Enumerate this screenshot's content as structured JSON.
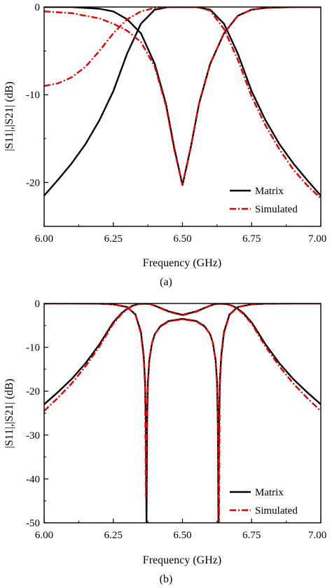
{
  "chart_data": [
    {
      "type": "line",
      "panel_label": "(a)",
      "xlabel": "Frequency (GHz)",
      "ylabel": "|S11|,|S21| (dB)",
      "xlim": [
        6.0,
        7.0
      ],
      "ylim": [
        -25,
        0
      ],
      "xticks": [
        "6.00",
        "6.25",
        "6.50",
        "6.75",
        "7.00"
      ],
      "yticks": [
        "0",
        "-10",
        "-20"
      ],
      "ytick_values": [
        0,
        -10,
        -20
      ],
      "legend": {
        "placement": "bottom-right",
        "entries": [
          "Matrix",
          "Simulated"
        ]
      },
      "series": [
        {
          "name": "Matrix",
          "color": "#000000",
          "style": "solid",
          "curves": [
            {
              "x": [
                6.0,
                6.05,
                6.1,
                6.15,
                6.2,
                6.25,
                6.3,
                6.35,
                6.4,
                6.45,
                6.5,
                6.55,
                6.6,
                6.65,
                6.7,
                6.75,
                6.8,
                6.85,
                6.9,
                6.95,
                7.0
              ],
              "y": [
                -21.5,
                -19.7,
                -17.8,
                -15.6,
                -12.9,
                -9.6,
                -5.3,
                -1.9,
                -0.3,
                0.0,
                0.0,
                0.0,
                -0.3,
                -1.9,
                -5.3,
                -9.6,
                -12.9,
                -15.6,
                -17.8,
                -19.7,
                -21.5
              ]
            },
            {
              "x": [
                6.0,
                6.1,
                6.2,
                6.25,
                6.3,
                6.35,
                6.4,
                6.44,
                6.47,
                6.5,
                6.53,
                6.56,
                6.6,
                6.65,
                6.7,
                6.75,
                6.8,
                6.9,
                7.0
              ],
              "y": [
                0.0,
                0.0,
                -0.2,
                -0.5,
                -1.4,
                -3.0,
                -6.5,
                -11.0,
                -16.0,
                -20.3,
                -16.0,
                -11.0,
                -6.5,
                -3.0,
                -1.0,
                -0.3,
                -0.1,
                0.0,
                0.0
              ]
            }
          ]
        },
        {
          "name": "Simulated",
          "color": "#e00000",
          "style": "dash-dot",
          "curves": [
            {
              "x": [
                6.0,
                6.05,
                6.1,
                6.15,
                6.2,
                6.25,
                6.3,
                6.35,
                6.4,
                6.45,
                6.5,
                6.55,
                6.6,
                6.65,
                6.7,
                6.75,
                6.8,
                6.85,
                6.9,
                6.95,
                7.0
              ],
              "y": [
                -9.0,
                -8.7,
                -8.0,
                -6.8,
                -5.0,
                -3.0,
                -1.4,
                -0.5,
                -0.1,
                0.0,
                0.0,
                0.0,
                -0.4,
                -2.5,
                -6.0,
                -10.2,
                -13.5,
                -16.2,
                -18.5,
                -20.3,
                -21.8
              ]
            },
            {
              "x": [
                6.0,
                6.1,
                6.2,
                6.25,
                6.3,
                6.35,
                6.4,
                6.44,
                6.47,
                6.5,
                6.53,
                6.56,
                6.6,
                6.65,
                6.7,
                6.75,
                6.8,
                6.9,
                7.0
              ],
              "y": [
                -0.5,
                -0.7,
                -1.3,
                -1.9,
                -2.7,
                -4.0,
                -6.8,
                -11.2,
                -16.2,
                -20.3,
                -16.0,
                -11.0,
                -6.5,
                -3.0,
                -1.0,
                -0.3,
                -0.1,
                0.0,
                0.0
              ]
            }
          ]
        }
      ]
    },
    {
      "type": "line",
      "panel_label": "(b)",
      "xlabel": "Frequency (GHz)",
      "ylabel": "|S11|,|S21| (dB)",
      "xlim": [
        6.0,
        7.0
      ],
      "ylim": [
        -50,
        0
      ],
      "xticks": [
        "6.00",
        "6.25",
        "6.50",
        "6.75",
        "7.00"
      ],
      "yticks": [
        "0",
        "-10",
        "-20",
        "-30",
        "-40",
        "-50"
      ],
      "ytick_values": [
        0,
        -10,
        -20,
        -30,
        -40,
        -50
      ],
      "legend": {
        "placement": "bottom-right",
        "entries": [
          "Matrix",
          "Simulated"
        ]
      },
      "series": [
        {
          "name": "Matrix",
          "color": "#000000",
          "style": "solid",
          "curves": [
            {
              "x": [
                6.0,
                6.05,
                6.1,
                6.15,
                6.2,
                6.25,
                6.28,
                6.3,
                6.32,
                6.34,
                6.36,
                6.38,
                6.4,
                6.45,
                6.5,
                6.55,
                6.6,
                6.62,
                6.64,
                6.66,
                6.68,
                6.7,
                6.72,
                6.75,
                6.8,
                6.85,
                6.9,
                6.95,
                7.0
              ],
              "y": [
                -23.0,
                -20.2,
                -17.2,
                -13.6,
                -9.3,
                -4.3,
                -2.2,
                -1.2,
                -0.5,
                -0.15,
                -0.05,
                -0.1,
                -0.5,
                -1.8,
                -2.6,
                -1.8,
                -0.5,
                -0.1,
                -0.05,
                -0.15,
                -0.5,
                -1.2,
                -2.2,
                -4.3,
                -9.3,
                -13.6,
                -17.2,
                -20.2,
                -23.0
              ]
            },
            {
              "x": [
                6.0,
                6.1,
                6.2,
                6.25,
                6.3,
                6.33,
                6.35,
                6.36,
                6.365,
                6.368,
                6.37,
                6.372,
                6.375,
                6.38,
                6.39,
                6.4,
                6.42,
                6.45,
                6.5,
                6.55,
                6.58,
                6.6,
                6.61,
                6.62,
                6.625,
                6.628,
                6.63,
                6.632,
                6.635,
                6.64,
                6.65,
                6.67,
                6.7,
                6.75,
                6.8,
                6.9,
                7.0
              ],
              "y": [
                0.0,
                0.0,
                -0.05,
                -0.2,
                -0.8,
                -2.5,
                -6.5,
                -12.0,
                -18.0,
                -28.0,
                -50.0,
                -28.0,
                -18.0,
                -13.0,
                -9.0,
                -7.0,
                -5.2,
                -4.0,
                -3.5,
                -4.0,
                -5.2,
                -7.0,
                -9.0,
                -13.0,
                -18.0,
                -28.0,
                -50.0,
                -28.0,
                -18.0,
                -12.0,
                -6.5,
                -2.5,
                -0.8,
                -0.2,
                -0.05,
                0.0,
                0.0
              ]
            }
          ]
        },
        {
          "name": "Simulated",
          "color": "#e00000",
          "style": "dash-dot",
          "curves": [
            {
              "x": [
                6.0,
                6.05,
                6.1,
                6.15,
                6.2,
                6.25,
                6.28,
                6.3,
                6.32,
                6.34,
                6.36,
                6.38,
                6.4,
                6.45,
                6.5,
                6.55,
                6.6,
                6.62,
                6.64,
                6.66,
                6.68,
                6.7,
                6.72,
                6.75,
                6.8,
                6.85,
                6.9,
                6.95,
                7.0
              ],
              "y": [
                -24.5,
                -21.5,
                -18.2,
                -14.3,
                -9.8,
                -4.6,
                -2.4,
                -1.3,
                -0.55,
                -0.15,
                -0.05,
                -0.1,
                -0.5,
                -1.9,
                -2.7,
                -1.9,
                -0.5,
                -0.1,
                -0.05,
                -0.15,
                -0.55,
                -1.3,
                -2.4,
                -4.6,
                -9.8,
                -14.3,
                -18.2,
                -21.5,
                -24.5
              ]
            },
            {
              "x": [
                6.0,
                6.1,
                6.2,
                6.25,
                6.3,
                6.33,
                6.35,
                6.36,
                6.365,
                6.368,
                6.372,
                6.375,
                6.38,
                6.39,
                6.4,
                6.42,
                6.45,
                6.5,
                6.55,
                6.58,
                6.6,
                6.61,
                6.62,
                6.625,
                6.628,
                6.632,
                6.635,
                6.64,
                6.65,
                6.67,
                6.7,
                6.75,
                6.8,
                6.9,
                7.0
              ],
              "y": [
                0.0,
                0.0,
                -0.05,
                -0.2,
                -0.8,
                -2.6,
                -6.8,
                -12.5,
                -19.0,
                -44.0,
                -27.0,
                -18.0,
                -13.0,
                -9.0,
                -7.0,
                -5.3,
                -4.1,
                -3.6,
                -4.1,
                -5.3,
                -7.0,
                -9.0,
                -13.0,
                -18.0,
                -27.0,
                -50.0,
                -19.0,
                -12.5,
                -6.8,
                -2.6,
                -0.8,
                -0.2,
                -0.05,
                0.0,
                0.0
              ]
            }
          ]
        }
      ]
    }
  ]
}
